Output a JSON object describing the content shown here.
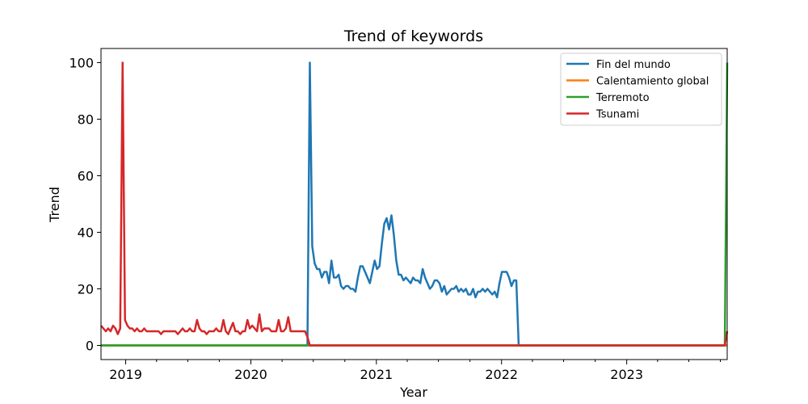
{
  "chart_data": {
    "type": "line",
    "title": "Trend of keywords",
    "xlabel": "Year",
    "ylabel": "Trend",
    "x_range": [
      "2018-10-21",
      "2023-10-21"
    ],
    "ylim": [
      -5,
      105
    ],
    "x_ticks": [
      "2019",
      "2020",
      "2021",
      "2022",
      "2023"
    ],
    "y_ticks": [
      0,
      20,
      40,
      60,
      80,
      100
    ],
    "grid": false,
    "legend_position": "top-right",
    "series": [
      {
        "name": "Fin del mundo",
        "color": "#1f77b4",
        "points": [
          [
            "2018-10-21",
            0
          ],
          [
            "2020-06-14",
            0
          ],
          [
            "2020-06-21",
            100
          ],
          [
            "2020-06-28",
            35
          ],
          [
            "2020-07-05",
            29
          ],
          [
            "2020-07-12",
            27
          ],
          [
            "2020-07-19",
            27
          ],
          [
            "2020-07-26",
            24
          ],
          [
            "2020-08-02",
            26
          ],
          [
            "2020-08-09",
            26
          ],
          [
            "2020-08-16",
            22
          ],
          [
            "2020-08-23",
            30
          ],
          [
            "2020-08-30",
            24
          ],
          [
            "2020-09-06",
            24
          ],
          [
            "2020-09-13",
            25
          ],
          [
            "2020-09-20",
            21
          ],
          [
            "2020-09-27",
            20
          ],
          [
            "2020-10-04",
            21
          ],
          [
            "2020-10-11",
            21
          ],
          [
            "2020-10-18",
            20
          ],
          [
            "2020-10-25",
            20
          ],
          [
            "2020-11-01",
            19
          ],
          [
            "2020-11-08",
            24
          ],
          [
            "2020-11-15",
            28
          ],
          [
            "2020-11-22",
            28
          ],
          [
            "2020-11-29",
            26
          ],
          [
            "2020-12-06",
            24
          ],
          [
            "2020-12-13",
            22
          ],
          [
            "2020-12-20",
            26
          ],
          [
            "2020-12-27",
            30
          ],
          [
            "2021-01-03",
            27
          ],
          [
            "2021-01-10",
            28
          ],
          [
            "2021-01-17",
            36
          ],
          [
            "2021-01-24",
            43
          ],
          [
            "2021-01-31",
            45
          ],
          [
            "2021-02-07",
            41
          ],
          [
            "2021-02-14",
            46
          ],
          [
            "2021-02-21",
            39
          ],
          [
            "2021-02-28",
            30
          ],
          [
            "2021-03-07",
            25
          ],
          [
            "2021-03-14",
            25
          ],
          [
            "2021-03-21",
            23
          ],
          [
            "2021-03-28",
            24
          ],
          [
            "2021-04-04",
            23
          ],
          [
            "2021-04-11",
            22
          ],
          [
            "2021-04-18",
            24
          ],
          [
            "2021-04-25",
            23
          ],
          [
            "2021-05-02",
            23
          ],
          [
            "2021-05-09",
            22
          ],
          [
            "2021-05-16",
            27
          ],
          [
            "2021-05-23",
            24
          ],
          [
            "2021-05-30",
            22
          ],
          [
            "2021-06-06",
            20
          ],
          [
            "2021-06-13",
            21
          ],
          [
            "2021-06-20",
            23
          ],
          [
            "2021-06-27",
            23
          ],
          [
            "2021-07-04",
            22
          ],
          [
            "2021-07-11",
            19
          ],
          [
            "2021-07-18",
            21
          ],
          [
            "2021-07-25",
            18
          ],
          [
            "2021-08-01",
            19
          ],
          [
            "2021-08-08",
            20
          ],
          [
            "2021-08-15",
            20
          ],
          [
            "2021-08-22",
            21
          ],
          [
            "2021-08-29",
            19
          ],
          [
            "2021-09-05",
            20
          ],
          [
            "2021-09-12",
            19
          ],
          [
            "2021-09-19",
            20
          ],
          [
            "2021-09-26",
            18
          ],
          [
            "2021-10-03",
            18
          ],
          [
            "2021-10-10",
            20
          ],
          [
            "2021-10-17",
            17
          ],
          [
            "2021-10-24",
            19
          ],
          [
            "2021-10-31",
            19
          ],
          [
            "2021-11-07",
            20
          ],
          [
            "2021-11-14",
            19
          ],
          [
            "2021-11-21",
            20
          ],
          [
            "2021-11-28",
            19
          ],
          [
            "2021-12-05",
            18
          ],
          [
            "2021-12-12",
            19
          ],
          [
            "2021-12-19",
            17
          ],
          [
            "2021-12-26",
            22
          ],
          [
            "2022-01-02",
            26
          ],
          [
            "2022-01-09",
            26
          ],
          [
            "2022-01-16",
            26
          ],
          [
            "2022-01-23",
            24
          ],
          [
            "2022-01-30",
            21
          ],
          [
            "2022-02-06",
            23
          ],
          [
            "2022-02-13",
            23
          ],
          [
            "2022-02-20",
            0
          ],
          [
            "2023-10-21",
            0
          ]
        ]
      },
      {
        "name": "Calentamiento global",
        "color": "#ff7f0e",
        "points": [
          [
            "2018-10-21",
            0
          ],
          [
            "2023-10-14",
            0
          ],
          [
            "2023-10-21",
            0
          ]
        ]
      },
      {
        "name": "Terremoto",
        "color": "#2ca02c",
        "points": [
          [
            "2018-10-21",
            0
          ],
          [
            "2023-10-14",
            0
          ],
          [
            "2023-10-21",
            100
          ]
        ]
      },
      {
        "name": "Tsunami",
        "color": "#d62728",
        "points": [
          [
            "2018-10-21",
            7
          ],
          [
            "2018-10-28",
            6
          ],
          [
            "2018-11-04",
            5
          ],
          [
            "2018-11-11",
            6
          ],
          [
            "2018-11-18",
            5
          ],
          [
            "2018-11-25",
            7
          ],
          [
            "2018-12-02",
            6
          ],
          [
            "2018-12-09",
            4
          ],
          [
            "2018-12-16",
            6
          ],
          [
            "2018-12-23",
            100
          ],
          [
            "2018-12-30",
            9
          ],
          [
            "2019-01-06",
            7
          ],
          [
            "2019-01-13",
            6
          ],
          [
            "2019-01-20",
            6
          ],
          [
            "2019-01-27",
            5
          ],
          [
            "2019-02-03",
            6
          ],
          [
            "2019-02-10",
            5
          ],
          [
            "2019-02-17",
            5
          ],
          [
            "2019-02-24",
            6
          ],
          [
            "2019-03-03",
            5
          ],
          [
            "2019-03-10",
            5
          ],
          [
            "2019-03-17",
            5
          ],
          [
            "2019-03-24",
            5
          ],
          [
            "2019-03-31",
            5
          ],
          [
            "2019-04-07",
            5
          ],
          [
            "2019-04-14",
            4
          ],
          [
            "2019-04-21",
            5
          ],
          [
            "2019-04-28",
            5
          ],
          [
            "2019-05-05",
            5
          ],
          [
            "2019-05-12",
            5
          ],
          [
            "2019-05-19",
            5
          ],
          [
            "2019-05-26",
            5
          ],
          [
            "2019-06-02",
            4
          ],
          [
            "2019-06-09",
            5
          ],
          [
            "2019-06-16",
            6
          ],
          [
            "2019-06-23",
            5
          ],
          [
            "2019-06-30",
            5
          ],
          [
            "2019-07-07",
            6
          ],
          [
            "2019-07-14",
            5
          ],
          [
            "2019-07-21",
            5
          ],
          [
            "2019-07-28",
            9
          ],
          [
            "2019-08-04",
            6
          ],
          [
            "2019-08-11",
            5
          ],
          [
            "2019-08-18",
            5
          ],
          [
            "2019-08-25",
            4
          ],
          [
            "2019-09-01",
            5
          ],
          [
            "2019-09-08",
            5
          ],
          [
            "2019-09-15",
            5
          ],
          [
            "2019-09-22",
            6
          ],
          [
            "2019-09-29",
            5
          ],
          [
            "2019-10-06",
            5
          ],
          [
            "2019-10-13",
            9
          ],
          [
            "2019-10-20",
            5
          ],
          [
            "2019-10-27",
            4
          ],
          [
            "2019-11-03",
            6
          ],
          [
            "2019-11-10",
            8
          ],
          [
            "2019-11-17",
            5
          ],
          [
            "2019-11-24",
            5
          ],
          [
            "2019-12-01",
            4
          ],
          [
            "2019-12-08",
            5
          ],
          [
            "2019-12-15",
            5
          ],
          [
            "2019-12-22",
            9
          ],
          [
            "2019-12-29",
            6
          ],
          [
            "2020-01-05",
            7
          ],
          [
            "2020-01-12",
            6
          ],
          [
            "2020-01-19",
            5
          ],
          [
            "2020-01-26",
            11
          ],
          [
            "2020-02-02",
            5
          ],
          [
            "2020-02-09",
            6
          ],
          [
            "2020-02-16",
            6
          ],
          [
            "2020-02-23",
            6
          ],
          [
            "2020-03-01",
            5
          ],
          [
            "2020-03-08",
            5
          ],
          [
            "2020-03-15",
            5
          ],
          [
            "2020-03-22",
            9
          ],
          [
            "2020-03-29",
            5
          ],
          [
            "2020-04-05",
            5
          ],
          [
            "2020-04-12",
            6
          ],
          [
            "2020-04-19",
            10
          ],
          [
            "2020-04-26",
            5
          ],
          [
            "2020-05-03",
            5
          ],
          [
            "2020-05-10",
            5
          ],
          [
            "2020-05-17",
            5
          ],
          [
            "2020-05-24",
            5
          ],
          [
            "2020-05-31",
            5
          ],
          [
            "2020-06-07",
            5
          ],
          [
            "2020-06-14",
            3
          ],
          [
            "2020-06-21",
            0
          ],
          [
            "2023-10-14",
            0
          ],
          [
            "2023-10-21",
            5
          ]
        ]
      }
    ]
  }
}
